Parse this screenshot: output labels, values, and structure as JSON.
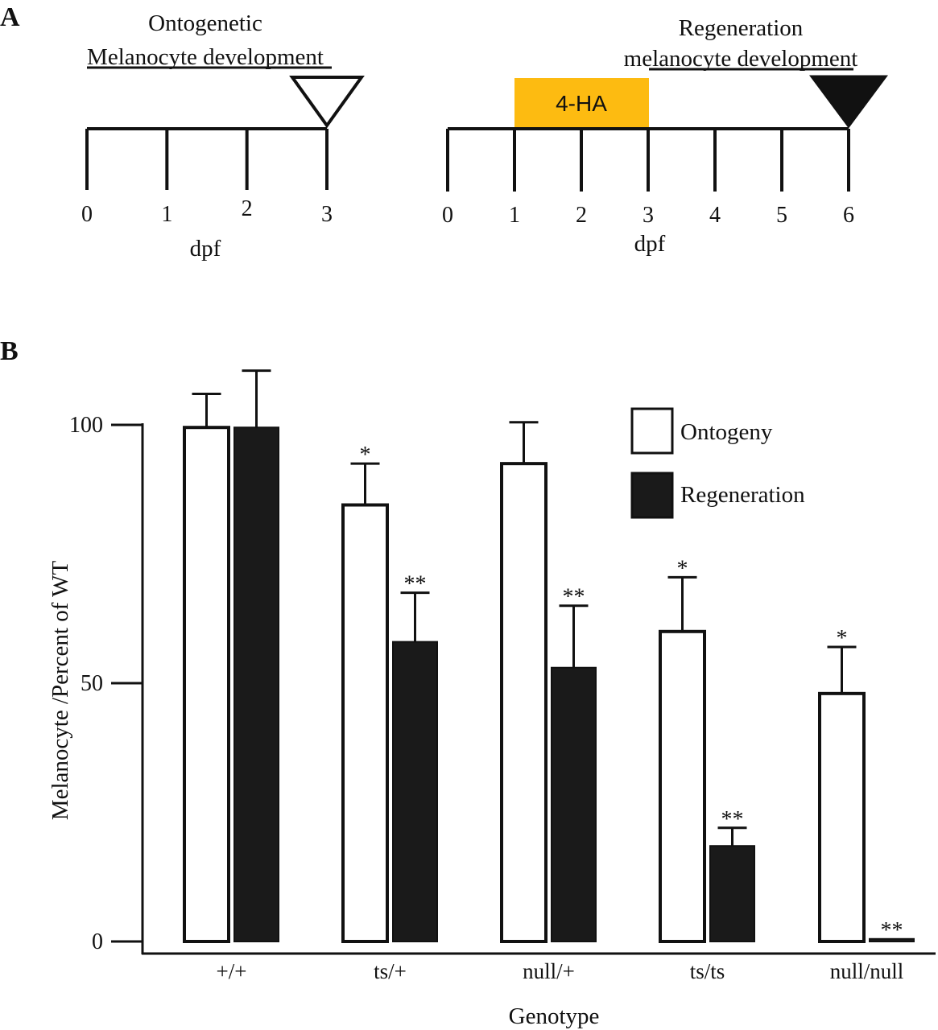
{
  "panelA": {
    "label": "A",
    "left": {
      "title_line1": "Ontogenetic",
      "title_line2": "Melanocyte development",
      "ticks": [
        "0",
        "1",
        "2",
        "3"
      ],
      "xlabel": "dpf",
      "marker": "open-triangle"
    },
    "right": {
      "title_line1": "Regeneration",
      "title_line2": "melanocyte development",
      "ticks": [
        "0",
        "1",
        "2",
        "3",
        "4",
        "5",
        "6"
      ],
      "xlabel": "dpf",
      "treatment_label": "4-HA",
      "treatment_span_dpf": [
        1,
        3
      ],
      "treatment_color": "#FDBB11",
      "marker": "filled-triangle"
    }
  },
  "panelB": {
    "label": "B"
  },
  "chart_data": {
    "type": "bar",
    "ylabel": "Melanocyte /Percent of WT",
    "xlabel": "Genotype",
    "ylim": [
      0,
      100
    ],
    "yticks": [
      "0",
      "50",
      "100"
    ],
    "categories": [
      "+/+",
      "ts/+",
      "null/+",
      "ts/ts",
      "null/null"
    ],
    "series": [
      {
        "name": "Ontogeny",
        "fill": "#ffffff",
        "values": [
          99.5,
          84.5,
          92.5,
          60,
          48
        ],
        "errors": [
          6.5,
          8,
          8,
          10.5,
          9
        ],
        "significance": [
          "",
          "*",
          "",
          "*",
          "*"
        ]
      },
      {
        "name": "Regeneration",
        "fill": "#1a1a1a",
        "values": [
          99.5,
          58,
          53,
          18.5,
          0.5
        ],
        "errors": [
          11,
          9.5,
          12,
          3.5,
          0
        ],
        "significance": [
          "",
          "**",
          "**",
          "**",
          "**"
        ]
      }
    ],
    "legend": [
      "Ontogeny",
      "Regeneration"
    ]
  }
}
